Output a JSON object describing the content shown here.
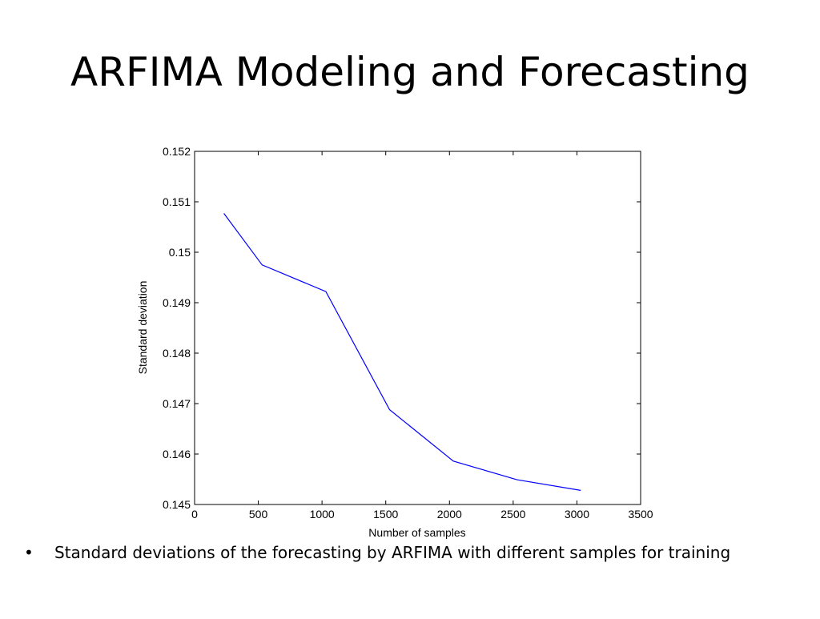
{
  "slide": {
    "title": "ARFIMA Modeling and Forecasting",
    "bullets": [
      {
        "marker": "•",
        "text": "Standard deviations of the forecasting by ARFIMA with different samples for training"
      }
    ]
  },
  "chart_data": {
    "type": "line",
    "title": "",
    "xlabel": "Number of samples",
    "ylabel": "Standard deviation",
    "xlim": [
      0,
      3500
    ],
    "ylim": [
      0.145,
      0.152
    ],
    "x_ticks": [
      0,
      500,
      1000,
      1500,
      2000,
      2500,
      3000,
      3500
    ],
    "x_tick_labels": [
      "0",
      "500",
      "1000",
      "1500",
      "2000",
      "2500",
      "3000",
      "3500"
    ],
    "y_ticks": [
      0.145,
      0.146,
      0.147,
      0.148,
      0.149,
      0.15,
      0.151,
      0.152
    ],
    "y_tick_labels": [
      "0.145",
      "0.146",
      "0.147",
      "0.148",
      "0.149",
      "0.15",
      "0.151",
      "0.152"
    ],
    "grid": false,
    "series": [
      {
        "color": "#0000ff",
        "x": [
          230,
          530,
          1030,
          1530,
          2030,
          2530,
          3030
        ],
        "y": [
          0.15077,
          0.14975,
          0.14922,
          0.14688,
          0.14586,
          0.14549,
          0.14528
        ]
      }
    ]
  }
}
